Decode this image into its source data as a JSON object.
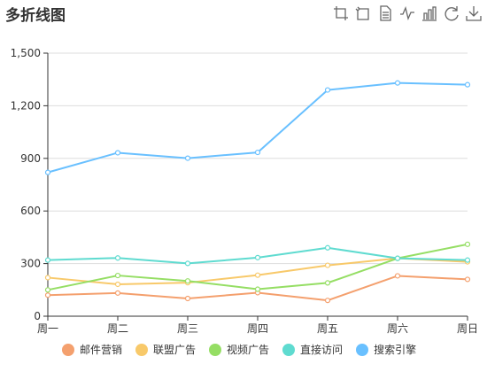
{
  "header": {
    "title": "多折线图"
  },
  "toolbox": [
    {
      "name": "crop-zoom-icon"
    },
    {
      "name": "zoom-reset-icon"
    },
    {
      "name": "data-view-icon"
    },
    {
      "name": "line-chart-icon"
    },
    {
      "name": "bar-chart-icon"
    },
    {
      "name": "restore-icon"
    },
    {
      "name": "download-icon"
    }
  ],
  "chart_data": {
    "type": "line",
    "title": "多折线图",
    "categories": [
      "周一",
      "周二",
      "周三",
      "周四",
      "周五",
      "周六",
      "周日"
    ],
    "ylim": [
      0,
      1500
    ],
    "yticks": [
      "0",
      "300",
      "600",
      "900",
      "1,200",
      "1,500"
    ],
    "ytick_values": [
      0,
      300,
      600,
      900,
      1200,
      1500
    ],
    "grid": true,
    "legend_position": "bottom",
    "series": [
      {
        "name": "邮件营销",
        "color": "#f4a06e",
        "values": [
          120,
          132,
          101,
          134,
          90,
          230,
          210
        ]
      },
      {
        "name": "联盟广告",
        "color": "#f8c96a",
        "values": [
          220,
          182,
          191,
          234,
          290,
          330,
          310
        ]
      },
      {
        "name": "视频广告",
        "color": "#95de64",
        "values": [
          150,
          232,
          201,
          154,
          190,
          330,
          410
        ]
      },
      {
        "name": "直接访问",
        "color": "#5fdbd0",
        "values": [
          320,
          332,
          301,
          334,
          390,
          330,
          320
        ]
      },
      {
        "name": "搜索引擎",
        "color": "#69c0ff",
        "values": [
          820,
          932,
          901,
          934,
          1290,
          1330,
          1320
        ]
      }
    ]
  }
}
